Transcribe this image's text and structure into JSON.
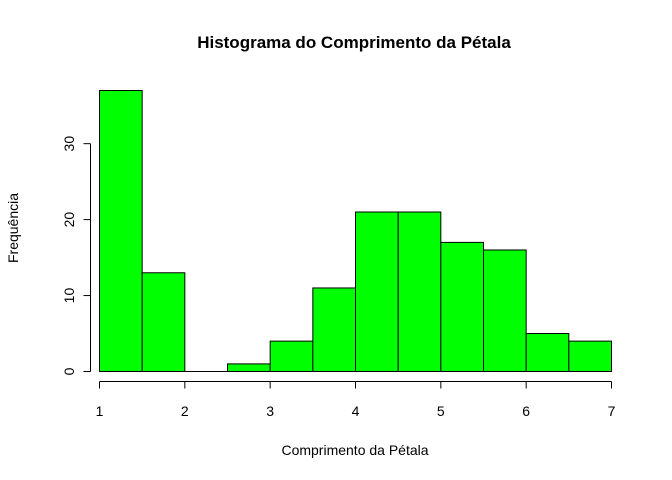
{
  "chart_data": {
    "type": "bar",
    "title": "Histograma do Comprimento da Pétala",
    "xlabel": "Comprimento da Pétala",
    "ylabel": "Frequência",
    "bins": [
      {
        "start": 1.0,
        "end": 1.5,
        "count": 37
      },
      {
        "start": 1.5,
        "end": 2.0,
        "count": 13
      },
      {
        "start": 2.0,
        "end": 2.5,
        "count": 0
      },
      {
        "start": 2.5,
        "end": 3.0,
        "count": 1
      },
      {
        "start": 3.0,
        "end": 3.5,
        "count": 4
      },
      {
        "start": 3.5,
        "end": 4.0,
        "count": 11
      },
      {
        "start": 4.0,
        "end": 4.5,
        "count": 21
      },
      {
        "start": 4.5,
        "end": 5.0,
        "count": 21
      },
      {
        "start": 5.0,
        "end": 5.5,
        "count": 17
      },
      {
        "start": 5.5,
        "end": 6.0,
        "count": 16
      },
      {
        "start": 6.0,
        "end": 6.5,
        "count": 5
      },
      {
        "start": 6.5,
        "end": 7.0,
        "count": 4
      }
    ],
    "xticks": [
      1,
      2,
      3,
      4,
      5,
      6,
      7
    ],
    "yticks": [
      0,
      10,
      20,
      30
    ],
    "xlim": [
      1,
      7
    ],
    "ylim": [
      0,
      37
    ],
    "bar_color": "#00ff00",
    "grid": false,
    "legend": "none"
  }
}
